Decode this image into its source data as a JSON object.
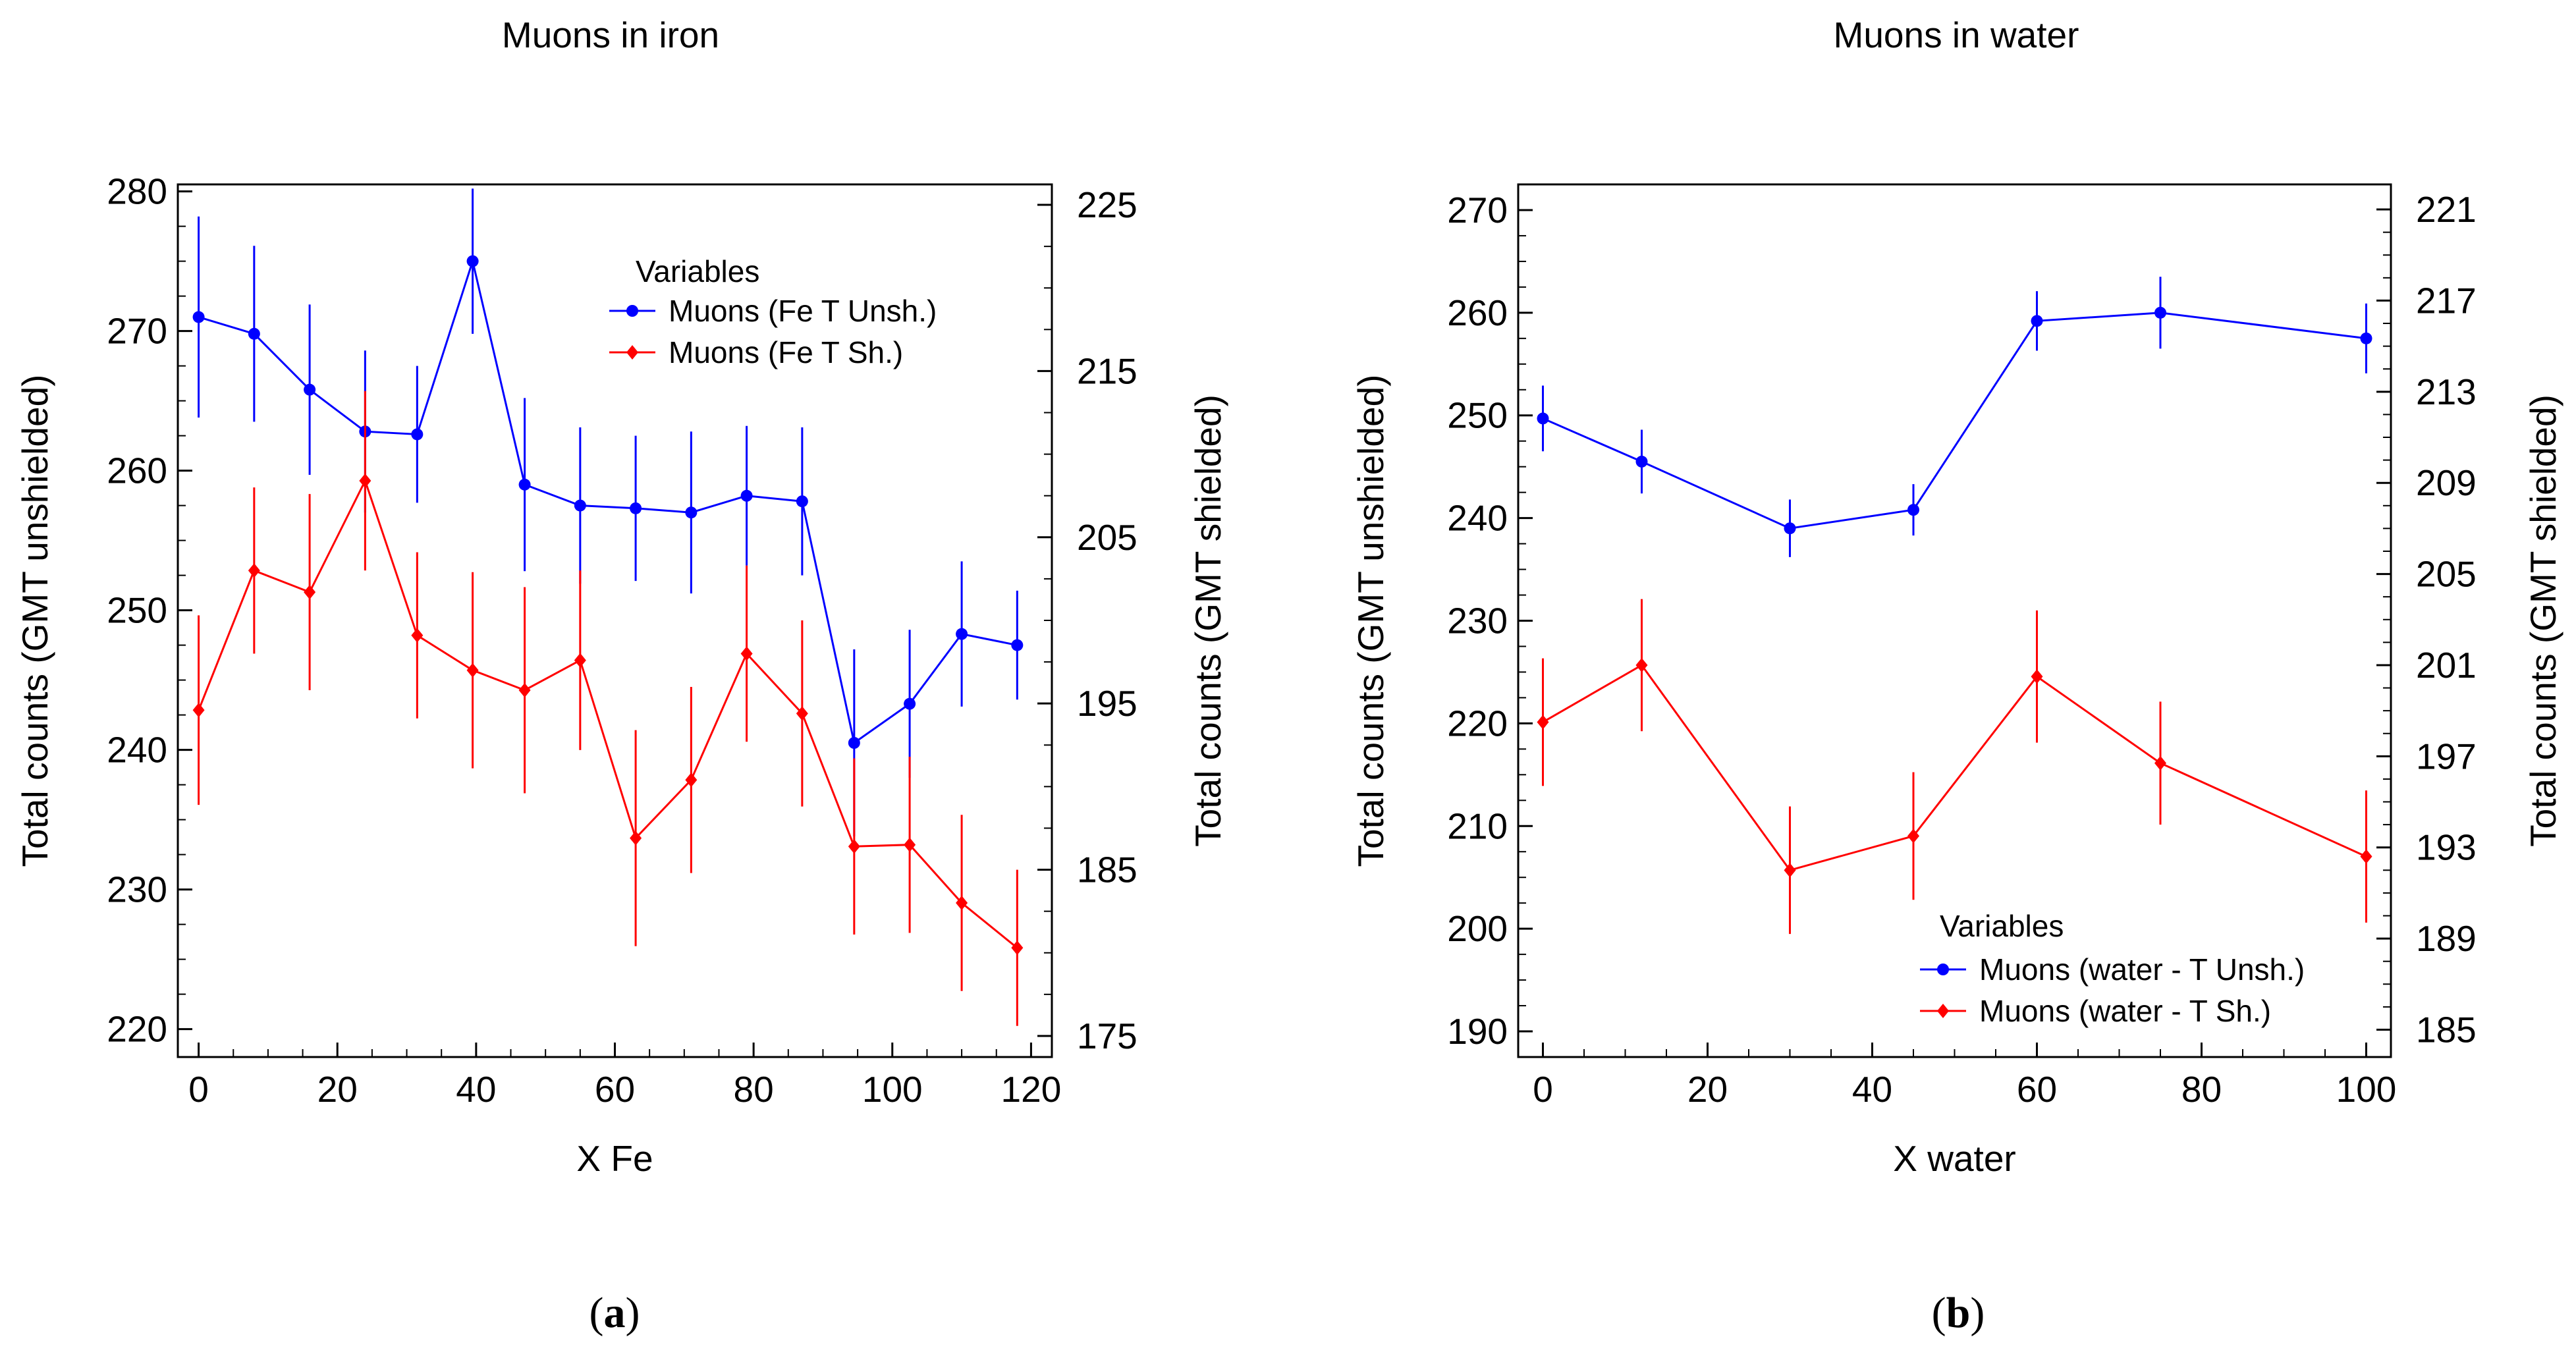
{
  "chart_data": [
    {
      "type": "line",
      "panel_label": "a",
      "title": "Muons in iron",
      "xlabel": "X Fe",
      "ylabel": "Total counts (GMT unshielded)",
      "y2label": "Total counts (GMT shielded)",
      "xlim": [
        -3,
        123
      ],
      "ylim": [
        218,
        280.5
      ],
      "y2lim": [
        173.73,
        226.23
      ],
      "xticks": [
        0,
        20,
        40,
        60,
        80,
        100,
        120
      ],
      "yticks": [
        220,
        230,
        240,
        250,
        260,
        270,
        280
      ],
      "y2ticks": [
        175,
        185,
        195,
        205,
        215,
        225
      ],
      "legend_title": "Variables",
      "legend_position": "top-right",
      "series": [
        {
          "name": "Muons (Fe T Unsh.)",
          "color": "#0000ff",
          "axis": "left",
          "x": [
            0,
            8,
            16,
            24,
            31.5,
            39.5,
            47,
            55,
            63,
            71,
            79,
            87,
            94.5,
            102.5,
            110,
            118
          ],
          "y": [
            271,
            269.8,
            265.8,
            262.8,
            262.6,
            275,
            259,
            257.5,
            257.3,
            257,
            258.2,
            257.8,
            240.5,
            243.3,
            248.3,
            247.5
          ],
          "err": [
            7.2,
            6.3,
            6.1,
            5.8,
            4.9,
            5.2,
            6.2,
            5.6,
            5.2,
            5.8,
            5.0,
            5.3,
            6.7,
            5.3,
            5.2,
            3.9
          ]
        },
        {
          "name": "Muons (Fe T Sh.)",
          "color": "#ff0000",
          "axis": "right",
          "x": [
            0,
            8,
            16,
            24,
            31.5,
            39.5,
            47,
            55,
            63,
            71,
            79,
            87,
            94.5,
            102.5,
            110,
            118
          ],
          "y": [
            194.6,
            203,
            201.7,
            208.4,
            199.1,
            197,
            195.8,
            197.6,
            186.9,
            190.4,
            198,
            194.4,
            186.4,
            186.5,
            183,
            180.3
          ],
          "err": [
            5.7,
            5.0,
            5.9,
            5.4,
            5.0,
            5.9,
            6.2,
            5.4,
            6.5,
            5.6,
            5.3,
            5.6,
            5.3,
            5.3,
            5.3,
            4.7
          ]
        }
      ]
    },
    {
      "type": "line",
      "panel_label": "b",
      "title": "Muons in water",
      "xlabel": "X water",
      "ylabel": "Total counts (GMT unshielded)",
      "y2label": "Total counts (GMT shielded)",
      "xlim": [
        -3,
        103
      ],
      "ylim": [
        187.5,
        272.5
      ],
      "y2lim": [
        183.8,
        222.1
      ],
      "xticks": [
        0,
        20,
        40,
        60,
        80,
        100
      ],
      "yticks": [
        190,
        200,
        210,
        220,
        230,
        240,
        250,
        260,
        270
      ],
      "y2ticks": [
        185,
        189,
        193,
        197,
        201,
        205,
        209,
        213,
        217,
        221
      ],
      "legend_title": "Variables",
      "legend_position": "bottom-right",
      "series": [
        {
          "name": "Muons (water - T Unsh.)",
          "color": "#0000ff",
          "axis": "left",
          "x": [
            0,
            12,
            30,
            45,
            60,
            75,
            100
          ],
          "y": [
            249.7,
            245.5,
            239,
            240.8,
            259.2,
            260,
            257.5
          ],
          "err": [
            3.2,
            3.1,
            2.8,
            2.5,
            2.9,
            3.5,
            3.4
          ]
        },
        {
          "name": "Muons (water - T Sh.)",
          "color": "#ff0000",
          "axis": "right",
          "x": [
            0,
            12,
            30,
            45,
            60,
            75,
            100
          ],
          "y": [
            198.5,
            201,
            192,
            193.5,
            200.5,
            196.7,
            192.6
          ],
          "err": [
            2.8,
            2.9,
            2.8,
            2.8,
            2.9,
            2.7,
            2.9
          ]
        }
      ]
    }
  ]
}
